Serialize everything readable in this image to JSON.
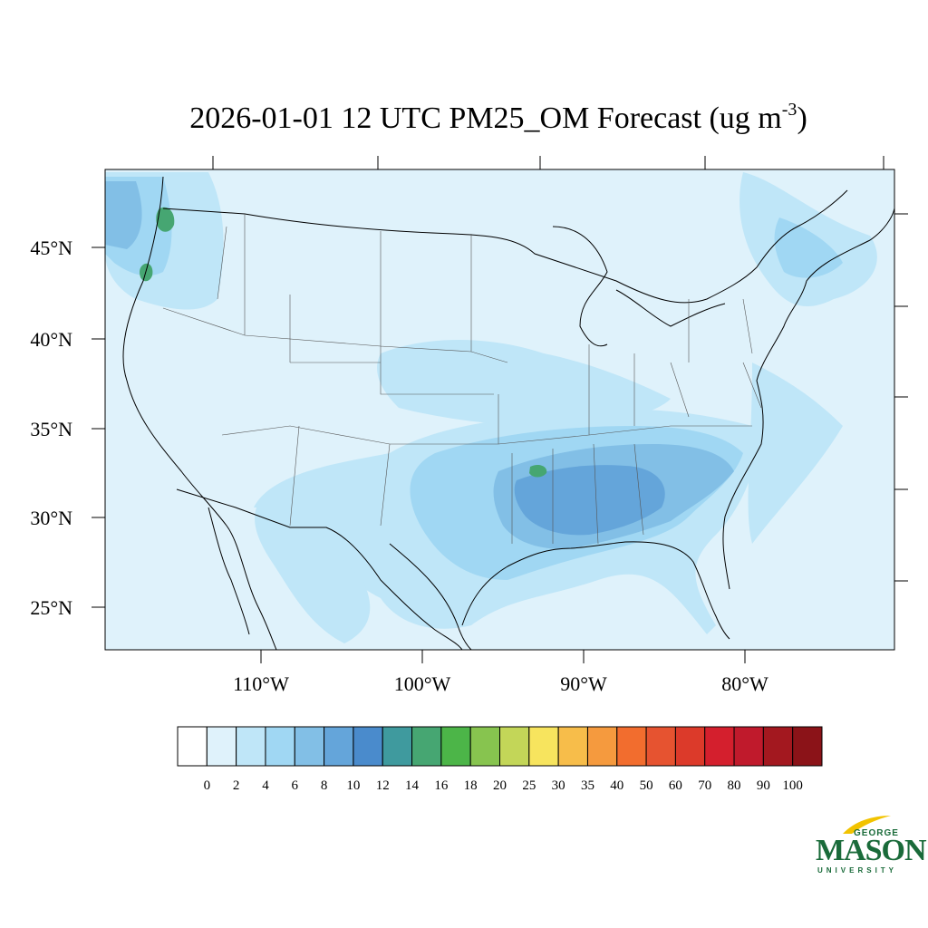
{
  "title": {
    "main": "2026-01-01 12 UTC PM25_OM Forecast (ug m",
    "exponent": "-3",
    "close": ")"
  },
  "map": {
    "lat_labels": [
      "45°N",
      "40°N",
      "35°N",
      "30°N",
      "25°N"
    ],
    "lat_values": [
      45,
      40,
      35,
      30,
      25
    ],
    "lon_labels": [
      "110°W",
      "100°W",
      "90°W",
      "80°W"
    ],
    "lon_values": [
      -110,
      -100,
      -90,
      -80
    ],
    "background_color": "#dff2fb"
  },
  "colorbar": {
    "labels": [
      "0",
      "2",
      "4",
      "6",
      "8",
      "10",
      "12",
      "14",
      "16",
      "18",
      "20",
      "25",
      "30",
      "35",
      "40",
      "50",
      "60",
      "70",
      "80",
      "90",
      "100"
    ],
    "colors": [
      "#ffffff",
      "#dff2fb",
      "#bfe6f8",
      "#a0d7f3",
      "#82bfe6",
      "#64a5da",
      "#4a8bcc",
      "#3f9a9e",
      "#46a672",
      "#4cb548",
      "#87c44f",
      "#c3d658",
      "#f7e45e",
      "#f7bd4a",
      "#f59a3e",
      "#f26d2e",
      "#e65330",
      "#dc3a2a",
      "#d41f2d",
      "#c01a2c",
      "#a3181f",
      "#8b1318"
    ]
  },
  "logo": {
    "line1": "GEORGE",
    "line2": "MASON",
    "line3": "UNIVERSITY",
    "brand_color": "#1a6b3a",
    "accent_color": "#f2c300"
  }
}
